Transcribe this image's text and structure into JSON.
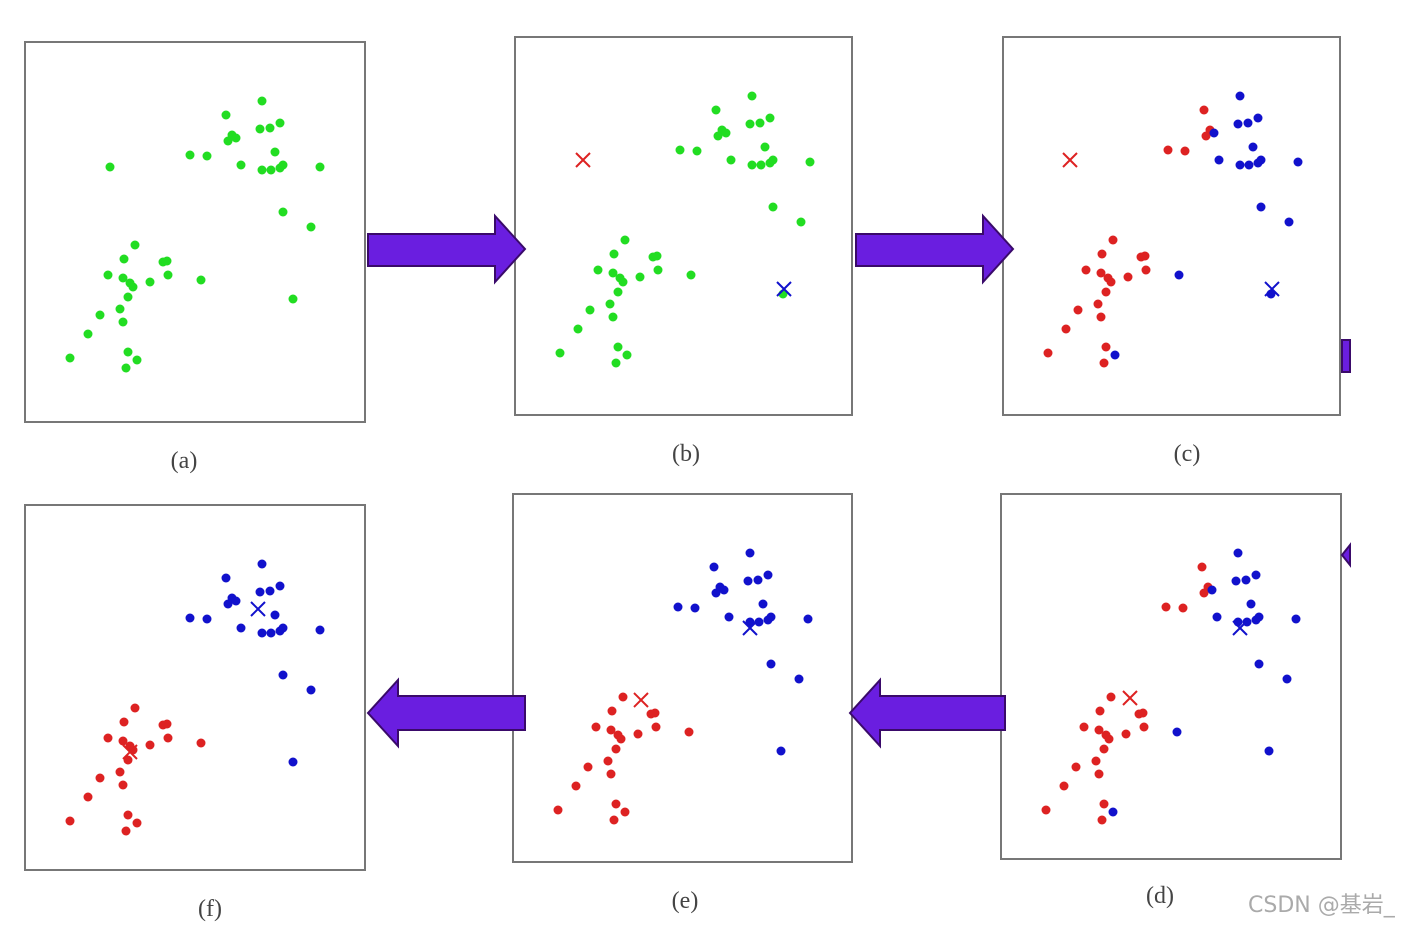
{
  "panels": [
    {
      "label": "(a)"
    },
    {
      "label": "(b)"
    },
    {
      "label": "(c)"
    },
    {
      "label": "(d)"
    },
    {
      "label": "(e)"
    },
    {
      "label": "(f)"
    }
  ],
  "watermark": "CSDN @基岩_"
}
